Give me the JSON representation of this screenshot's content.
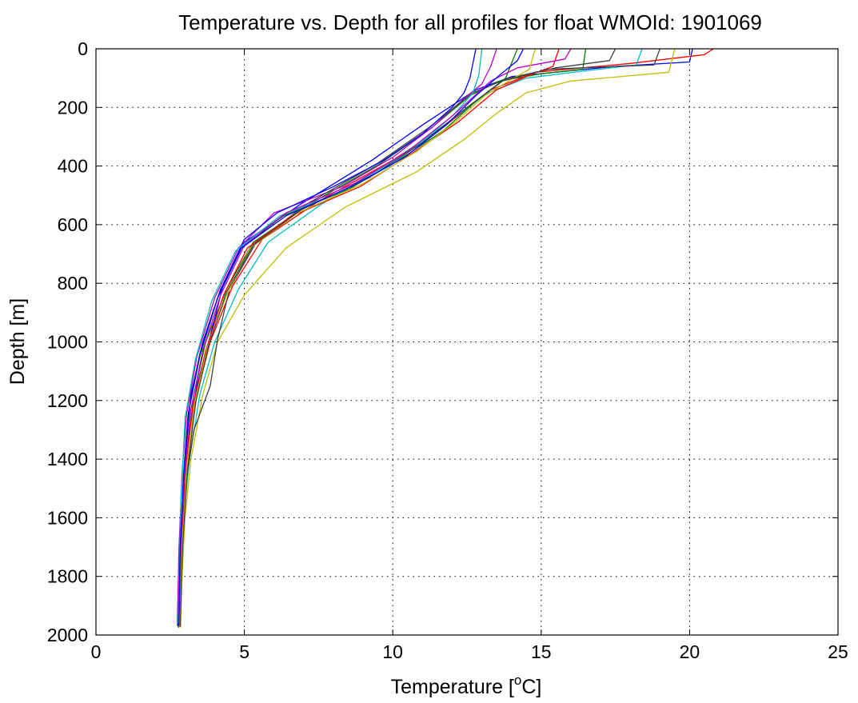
{
  "chart_data": {
    "type": "line",
    "title": "Temperature vs. Depth for all profiles for float WMOId: 1901069",
    "xlabel": "Temperature [",
    "xlabel_superscript": "o",
    "xlabel_end": "C]",
    "ylabel": "Depth [m]",
    "xlim": [
      0,
      25
    ],
    "ylim": [
      0,
      2000
    ],
    "y_reversed": true,
    "grid": true,
    "xticks": [
      0,
      5,
      10,
      15,
      20,
      25
    ],
    "yticks": [
      0,
      200,
      400,
      600,
      800,
      1000,
      1200,
      1400,
      1600,
      1800,
      2000
    ],
    "xtick_labels": [
      "0",
      "5",
      "10",
      "15",
      "20",
      "25"
    ],
    "ytick_labels": [
      "0",
      "200",
      "400",
      "600",
      "800",
      "1000",
      "1200",
      "1400",
      "1600",
      "1800",
      "2000"
    ],
    "series_colors": [
      "#0000ff",
      "#008000",
      "#ff0000",
      "#00bfbf",
      "#bf00bf",
      "#bfbf00",
      "#404040"
    ],
    "series": [
      {
        "color": "#0000ff",
        "x": [
          20.1,
          20.0,
          17.5,
          14.0,
          12.8,
          11.0,
          9.3,
          6.9,
          5.0,
          4.2,
          3.6,
          3.2,
          3.0,
          2.9,
          2.8,
          2.75
        ],
        "y": [
          0,
          45,
          60,
          95,
          140,
          260,
          380,
          530,
          660,
          820,
          1000,
          1180,
          1400,
          1600,
          1800,
          1970
        ]
      },
      {
        "color": "#008000",
        "x": [
          16.5,
          16.4,
          15.0,
          13.6,
          12.6,
          11.3,
          9.6,
          7.2,
          5.3,
          4.4,
          3.7,
          3.3,
          3.05,
          2.9,
          2.82,
          2.78
        ],
        "y": [
          0,
          70,
          85,
          110,
          160,
          270,
          390,
          530,
          660,
          820,
          1000,
          1180,
          1400,
          1600,
          1800,
          1975
        ]
      },
      {
        "color": "#ff0000",
        "x": [
          20.8,
          20.5,
          18.0,
          14.8,
          13.3,
          11.8,
          10.0,
          7.5,
          5.6,
          4.6,
          3.85,
          3.4,
          3.1,
          2.95,
          2.85,
          2.8
        ],
        "y": [
          0,
          20,
          50,
          80,
          140,
          260,
          380,
          520,
          650,
          810,
          1000,
          1180,
          1400,
          1600,
          1800,
          1970
        ]
      },
      {
        "color": "#00bfbf",
        "x": [
          18.4,
          18.2,
          16.5,
          14.5,
          13.2,
          11.6,
          9.9,
          7.6,
          5.8,
          4.8,
          4.0,
          3.5,
          3.15,
          2.95,
          2.85,
          2.82
        ],
        "y": [
          0,
          55,
          75,
          100,
          150,
          270,
          390,
          530,
          660,
          820,
          1000,
          1180,
          1400,
          1600,
          1800,
          1965
        ]
      },
      {
        "color": "#bf00bf",
        "x": [
          13.5,
          13.3,
          13.0,
          12.4,
          11.3,
          10.0,
          8.3,
          6.0,
          4.8,
          4.0,
          3.4,
          3.05,
          2.9,
          2.8,
          2.74
        ],
        "y": [
          0,
          60,
          120,
          170,
          270,
          370,
          470,
          560,
          680,
          850,
          1050,
          1250,
          1450,
          1700,
          1960
        ]
      },
      {
        "color": "#bfbf00",
        "x": [
          19.5,
          19.3,
          16.0,
          14.5,
          13.5,
          12.4,
          10.8,
          8.4,
          6.4,
          5.0,
          4.1,
          3.6,
          3.2,
          3.0,
          2.9,
          2.85
        ],
        "y": [
          0,
          80,
          110,
          150,
          220,
          310,
          420,
          540,
          680,
          840,
          1000,
          1180,
          1400,
          1600,
          1800,
          1975
        ]
      },
      {
        "color": "#404040",
        "x": [
          17.5,
          17.3,
          15.5,
          13.9,
          12.7,
          11.2,
          9.5,
          7.1,
          5.4,
          4.5,
          4.1,
          3.85,
          3.3,
          3.0,
          2.86,
          2.8
        ],
        "y": [
          0,
          40,
          65,
          100,
          150,
          270,
          390,
          530,
          660,
          820,
          990,
          1150,
          1300,
          1500,
          1750,
          1960
        ]
      },
      {
        "color": "#0000ff",
        "x": [
          12.8,
          12.6,
          12.4,
          12.0,
          11.0,
          9.7,
          8.0,
          6.1,
          5.0,
          4.3,
          3.8,
          3.4,
          3.0,
          2.85,
          2.78
        ],
        "y": [
          0,
          100,
          150,
          200,
          290,
          380,
          470,
          560,
          650,
          800,
          1000,
          1150,
          1400,
          1700,
          1965
        ]
      },
      {
        "color": "#008000",
        "x": [
          14.2,
          14.0,
          13.8,
          12.9,
          11.7,
          10.2,
          8.5,
          6.3,
          4.9,
          4.1,
          3.5,
          3.1,
          2.95,
          2.85,
          2.8
        ],
        "y": [
          0,
          50,
          100,
          170,
          280,
          380,
          480,
          570,
          680,
          850,
          1050,
          1250,
          1450,
          1700,
          1970
        ]
      },
      {
        "color": "#ff0000",
        "x": [
          15.6,
          15.4,
          14.6,
          13.5,
          12.2,
          10.6,
          8.9,
          6.6,
          5.1,
          4.3,
          3.7,
          3.25,
          3.0,
          2.88,
          2.82
        ],
        "y": [
          0,
          60,
          90,
          140,
          250,
          360,
          470,
          570,
          680,
          840,
          1030,
          1230,
          1450,
          1700,
          1972
        ]
      },
      {
        "color": "#00bfbf",
        "x": [
          13.0,
          12.9,
          12.7,
          12.1,
          11.2,
          9.9,
          8.2,
          6.2,
          4.7,
          3.9,
          3.35,
          3.0,
          2.86,
          2.77
        ],
        "y": [
          0,
          90,
          150,
          220,
          300,
          400,
          490,
          570,
          690,
          860,
          1060,
          1260,
          1550,
          1960
        ]
      },
      {
        "color": "#bf00bf",
        "x": [
          16.0,
          15.8,
          14.2,
          13.3,
          12.0,
          10.5,
          8.7,
          6.4,
          5.0,
          4.2,
          3.6,
          3.2,
          2.98,
          2.86,
          2.8
        ],
        "y": [
          0,
          35,
          65,
          110,
          230,
          350,
          460,
          560,
          670,
          840,
          1030,
          1230,
          1450,
          1700,
          1968
        ]
      },
      {
        "color": "#bfbf00",
        "x": [
          14.8,
          14.6,
          13.9,
          13.1,
          12.1,
          10.8,
          9.0,
          6.8,
          5.2,
          4.4,
          3.75,
          3.3,
          3.05,
          2.9,
          2.83
        ],
        "y": [
          0,
          70,
          110,
          160,
          250,
          350,
          460,
          560,
          680,
          840,
          1020,
          1220,
          1450,
          1700,
          1970
        ]
      },
      {
        "color": "#404040",
        "x": [
          19.0,
          18.8,
          15.2,
          13.7,
          12.5,
          11.0,
          9.2,
          6.9,
          5.3,
          4.4,
          3.8,
          3.35,
          3.08,
          2.92,
          2.84
        ],
        "y": [
          0,
          55,
          70,
          110,
          200,
          320,
          440,
          550,
          670,
          830,
          1010,
          1210,
          1440,
          1700,
          1972
        ]
      },
      {
        "color": "#0000ff",
        "x": [
          14.4,
          14.2,
          13.6,
          12.8,
          11.8,
          10.4,
          8.6,
          6.4,
          4.9,
          4.1,
          3.5,
          3.12,
          2.95,
          2.84,
          2.79
        ],
        "y": [
          0,
          40,
          90,
          160,
          260,
          370,
          470,
          570,
          680,
          850,
          1040,
          1240,
          1460,
          1700,
          1966
        ]
      }
    ]
  }
}
